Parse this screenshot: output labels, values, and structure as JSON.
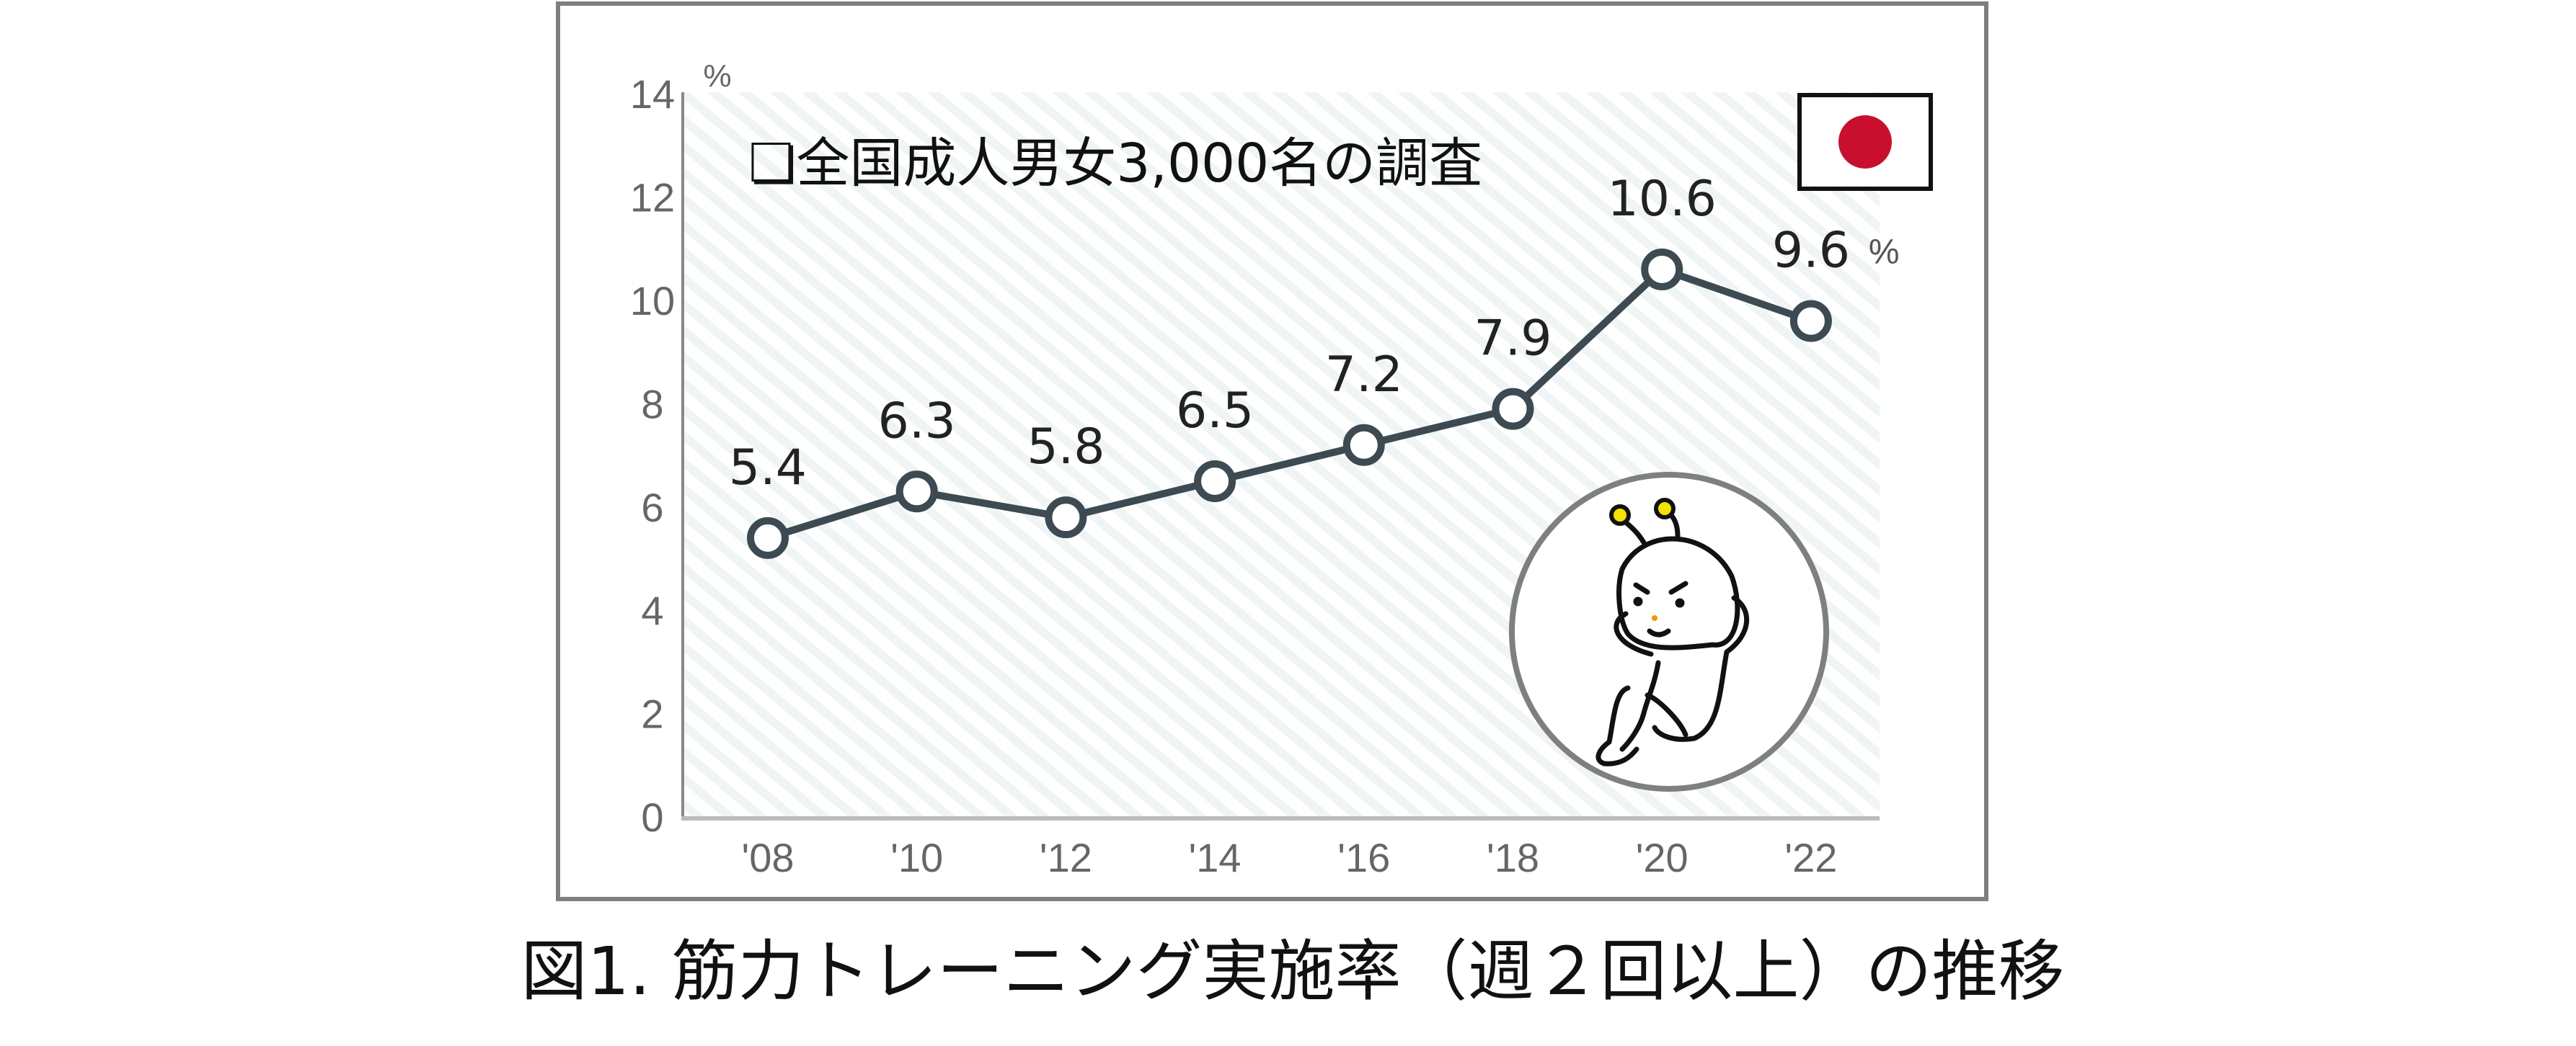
{
  "chart_data": {
    "type": "line",
    "title": "❏全国成人男女3,000名の調査",
    "caption": "図1. 筋力トレーニング実施率（週２回以上）の推移",
    "ylabel": "%",
    "last_value_unit": "%",
    "categories": [
      "'08",
      "'10",
      "'12",
      "'14",
      "'16",
      "'18",
      "'20",
      "'22"
    ],
    "values": [
      5.4,
      6.3,
      5.8,
      6.5,
      7.2,
      7.9,
      10.6,
      9.6
    ],
    "value_labels": [
      "5.4",
      "6.3",
      "5.8",
      "6.5",
      "7.2",
      "7.9",
      "10.6",
      "9.6"
    ],
    "ylim": [
      0,
      14
    ],
    "yticks": [
      "0",
      "2",
      "4",
      "6",
      "8",
      "10",
      "12",
      "14"
    ],
    "grid": false,
    "background": "diagonal-stripes",
    "colors": {
      "line": "#3d4a52",
      "marker_fill": "#ffffff",
      "flag_red": "#c8102e",
      "frame": "#7f7f7f"
    },
    "icons": [
      "japan-flag-icon",
      "mascot-situp-illustration"
    ]
  }
}
